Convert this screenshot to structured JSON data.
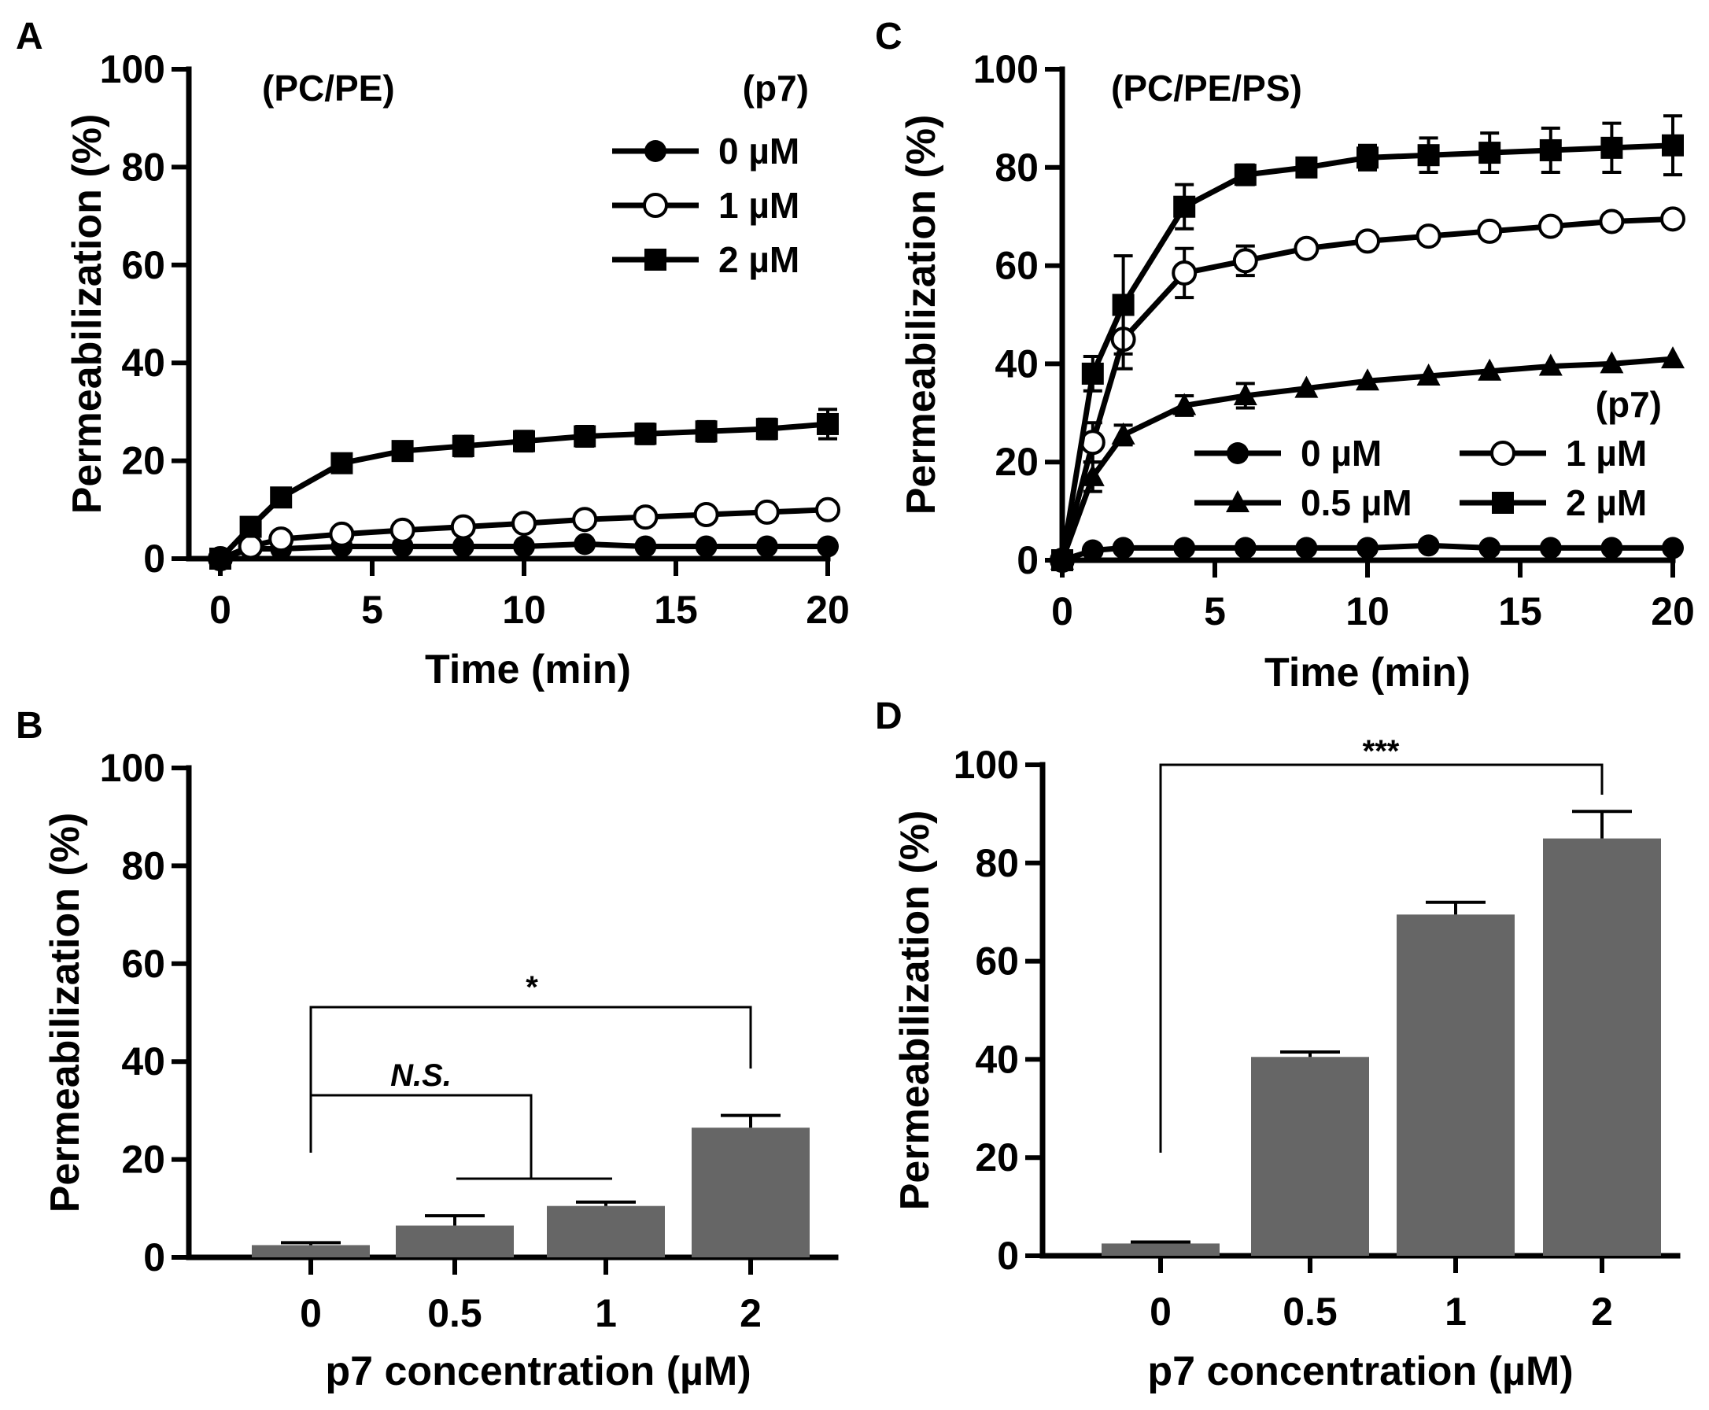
{
  "chart_data": [
    {
      "panel": "A",
      "type": "line",
      "title": "(PC/PE)",
      "xlabel": "Time (min)",
      "ylabel": "Permeabilization (%)",
      "xlim": [
        0,
        20
      ],
      "ylim": [
        0,
        100
      ],
      "xticks": [
        "0",
        "5",
        "10",
        "15",
        "20"
      ],
      "yticks": [
        "0",
        "20",
        "40",
        "60",
        "80",
        "100"
      ],
      "legend_title": "(p7)",
      "legend_position": "top-right",
      "series": [
        {
          "name": "0 µM",
          "marker": "filled-circle",
          "x": [
            0,
            1,
            2,
            4,
            6,
            8,
            10,
            12,
            14,
            16,
            18,
            20
          ],
          "y": [
            0,
            2,
            2,
            2.5,
            2.5,
            2.5,
            2.5,
            3,
            2.5,
            2.5,
            2.5,
            2.5
          ],
          "err": [
            0,
            0,
            0,
            0,
            0,
            0,
            0,
            0,
            0,
            0,
            0,
            0
          ]
        },
        {
          "name": "1 µM",
          "marker": "open-circle",
          "x": [
            0,
            1,
            2,
            4,
            6,
            8,
            10,
            12,
            14,
            16,
            18,
            20
          ],
          "y": [
            0,
            2.5,
            4,
            5,
            5.8,
            6.5,
            7.2,
            8,
            8.5,
            9,
            9.5,
            10
          ],
          "err": [
            0,
            0,
            0,
            0,
            0,
            0,
            0,
            0,
            0,
            0,
            0,
            0
          ]
        },
        {
          "name": "2 µM",
          "marker": "filled-square",
          "x": [
            0,
            1,
            2,
            4,
            6,
            8,
            10,
            12,
            14,
            16,
            18,
            20
          ],
          "y": [
            0,
            6.5,
            12.5,
            19.5,
            22,
            23,
            24,
            25,
            25.5,
            26,
            26.5,
            27.5
          ],
          "err": [
            0,
            1,
            1,
            1.5,
            1.5,
            2,
            2,
            2,
            2,
            2,
            2,
            3
          ]
        }
      ]
    },
    {
      "panel": "B",
      "type": "bar",
      "categories": [
        "0",
        "0.5",
        "1",
        "2"
      ],
      "values": [
        2.5,
        6.5,
        10.5,
        26.5
      ],
      "errors": [
        0.5,
        2,
        0.8,
        2.5
      ],
      "xlabel": "p7 concentration (µM)",
      "ylabel": "Permeabilization (%)",
      "ylim": [
        0,
        100
      ],
      "yticks": [
        "0",
        "20",
        "40",
        "60",
        "80",
        "100"
      ],
      "annotations": [
        {
          "label": "N.S.",
          "from": "0",
          "to": [
            "0.5",
            "1"
          ]
        },
        {
          "label": "*",
          "from": "0",
          "to": "2"
        }
      ]
    },
    {
      "panel": "C",
      "type": "line",
      "title": "(PC/PE/PS)",
      "xlabel": "Time (min)",
      "ylabel": "Permeabilization (%)",
      "xlim": [
        0,
        20
      ],
      "ylim": [
        0,
        100
      ],
      "xticks": [
        "0",
        "5",
        "10",
        "15",
        "20"
      ],
      "yticks": [
        "0",
        "20",
        "40",
        "60",
        "80",
        "100"
      ],
      "legend_title": "(p7)",
      "legend_position": "middle-right",
      "series": [
        {
          "name": "0 µM",
          "marker": "filled-circle",
          "x": [
            0,
            1,
            2,
            4,
            6,
            8,
            10,
            12,
            14,
            16,
            18,
            20
          ],
          "y": [
            0,
            2,
            2.5,
            2.5,
            2.5,
            2.5,
            2.5,
            3,
            2.5,
            2.5,
            2.5,
            2.5
          ],
          "err": [
            0,
            0,
            0,
            0,
            0,
            0,
            0,
            0,
            0,
            0,
            0,
            0
          ]
        },
        {
          "name": "0.5 µM",
          "marker": "filled-triangle",
          "x": [
            0,
            1,
            2,
            4,
            6,
            8,
            10,
            12,
            14,
            16,
            18,
            20
          ],
          "y": [
            0,
            17,
            25.5,
            31.5,
            33.5,
            35,
            36.5,
            37.5,
            38.5,
            39.5,
            40,
            41
          ],
          "err": [
            0,
            3,
            2,
            2,
            2.5,
            0,
            0,
            0,
            0,
            0,
            0,
            0
          ]
        },
        {
          "name": "1 µM",
          "marker": "open-circle",
          "x": [
            0,
            1,
            2,
            4,
            6,
            8,
            10,
            12,
            14,
            16,
            18,
            20
          ],
          "y": [
            0,
            24,
            45,
            58.5,
            61,
            63.5,
            65,
            66,
            67,
            68,
            69,
            69.5
          ],
          "err": [
            0,
            4,
            6,
            5,
            3,
            0,
            0,
            0,
            0,
            0,
            0,
            0
          ]
        },
        {
          "name": "2 µM",
          "marker": "filled-square",
          "x": [
            0,
            1,
            2,
            4,
            6,
            8,
            10,
            12,
            14,
            16,
            18,
            20
          ],
          "y": [
            0,
            38,
            52,
            72,
            78.5,
            80,
            82,
            82.5,
            83,
            83.5,
            84,
            84.5
          ],
          "err": [
            0,
            3.5,
            10,
            4.5,
            2,
            1.5,
            2.5,
            3.5,
            4,
            4.5,
            5,
            6
          ]
        }
      ]
    },
    {
      "panel": "D",
      "type": "bar",
      "categories": [
        "0",
        "0.5",
        "1",
        "2"
      ],
      "values": [
        2.5,
        40.5,
        69.5,
        85
      ],
      "errors": [
        0.3,
        1,
        2.5,
        5.5
      ],
      "xlabel": "p7 concentration (µM)",
      "ylabel": "Permeabilization (%)",
      "ylim": [
        0,
        100
      ],
      "yticks": [
        "0",
        "20",
        "40",
        "60",
        "80",
        "100"
      ],
      "annotations": [
        {
          "label": "***",
          "from": "0",
          "to": "2"
        }
      ]
    }
  ]
}
